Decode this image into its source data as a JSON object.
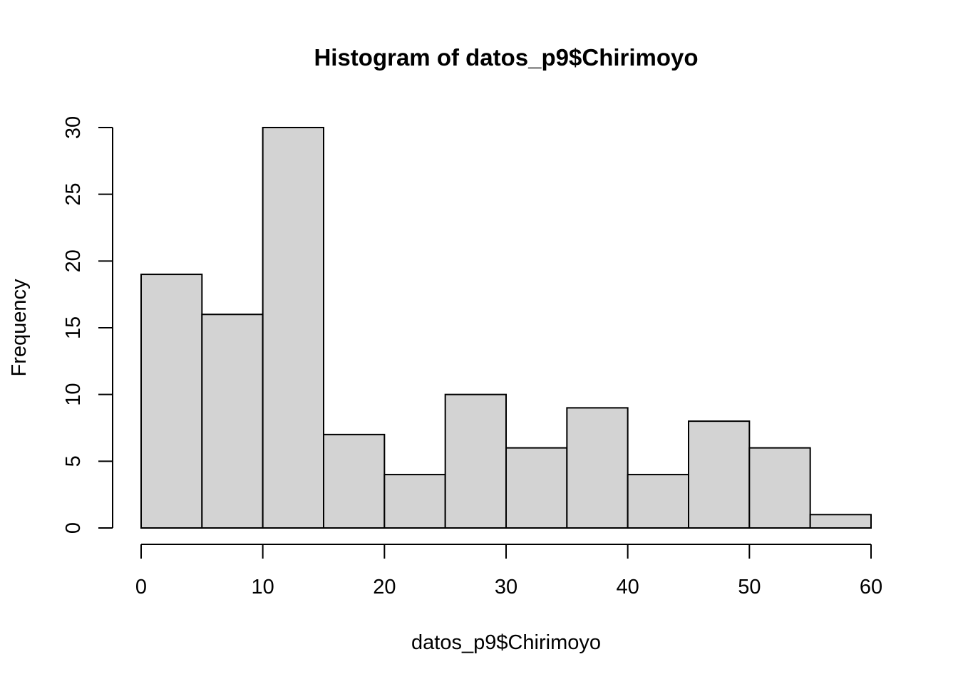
{
  "chart_data": {
    "type": "bar",
    "title": "Histogram of datos_p9$Chirimoyo",
    "xlabel": "datos_p9$Chirimoyo",
    "ylabel": "Frequency",
    "bins": [
      {
        "from": 0,
        "to": 5,
        "count": 19
      },
      {
        "from": 5,
        "to": 10,
        "count": 16
      },
      {
        "from": 10,
        "to": 15,
        "count": 30
      },
      {
        "from": 15,
        "to": 20,
        "count": 7
      },
      {
        "from": 20,
        "to": 25,
        "count": 4
      },
      {
        "from": 25,
        "to": 30,
        "count": 10
      },
      {
        "from": 30,
        "to": 35,
        "count": 6
      },
      {
        "from": 35,
        "to": 40,
        "count": 9
      },
      {
        "from": 40,
        "to": 45,
        "count": 4
      },
      {
        "from": 45,
        "to": 50,
        "count": 8
      },
      {
        "from": 50,
        "to": 55,
        "count": 6
      },
      {
        "from": 55,
        "to": 60,
        "count": 1
      }
    ],
    "xlim": [
      0,
      60
    ],
    "ylim": [
      0,
      30
    ],
    "x_ticks": [
      0,
      10,
      20,
      30,
      40,
      50,
      60
    ],
    "y_ticks": [
      0,
      5,
      10,
      15,
      20,
      25,
      30
    ],
    "bar_fill": "#d3d3d3",
    "bar_stroke": "#000000",
    "grid": false,
    "legend": "none"
  }
}
